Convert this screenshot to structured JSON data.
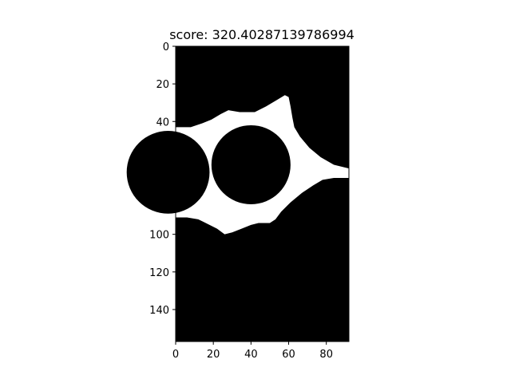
{
  "chart_data": {
    "type": "heatmap",
    "title": "score: 320.40287139786994",
    "xlabel": "",
    "ylabel": "",
    "width_cells": 92,
    "height_cells": 157,
    "xlim": [
      0,
      92
    ],
    "ylim": [
      157,
      0
    ],
    "x_ticks": [
      0,
      20,
      40,
      60,
      80
    ],
    "y_ticks": [
      0,
      20,
      40,
      60,
      80,
      100,
      120,
      140
    ],
    "grid": false,
    "legend": "none",
    "colormap": "binary",
    "colors": {
      "background": "#000000",
      "foreground": "#ffffff"
    },
    "white_region_outline": [
      [
        0,
        43
      ],
      [
        8,
        43
      ],
      [
        14,
        41
      ],
      [
        19,
        39
      ],
      [
        24,
        36
      ],
      [
        28,
        34
      ],
      [
        34,
        35
      ],
      [
        42,
        35
      ],
      [
        48,
        32
      ],
      [
        53,
        29
      ],
      [
        58,
        26
      ],
      [
        60,
        27
      ],
      [
        61,
        32
      ],
      [
        62,
        38
      ],
      [
        63,
        43
      ],
      [
        66,
        48
      ],
      [
        71,
        54
      ],
      [
        77,
        59
      ],
      [
        84,
        63
      ],
      [
        92,
        65
      ],
      [
        92,
        70
      ],
      [
        84,
        70
      ],
      [
        78,
        71
      ],
      [
        73,
        74
      ],
      [
        67,
        78
      ],
      [
        61,
        83
      ],
      [
        56,
        88
      ],
      [
        53,
        92
      ],
      [
        50,
        94
      ],
      [
        44,
        94
      ],
      [
        40,
        95
      ],
      [
        35,
        97
      ],
      [
        30,
        99
      ],
      [
        26,
        100
      ],
      [
        22,
        97
      ],
      [
        18,
        95
      ],
      [
        12,
        92
      ],
      [
        6,
        91
      ],
      [
        0,
        91
      ]
    ],
    "black_holes": [
      {
        "shape": "circle",
        "cx": 40,
        "cy": 63,
        "r": 21
      },
      {
        "shape": "circle",
        "cx": -4,
        "cy": 67,
        "r": 22
      }
    ]
  }
}
